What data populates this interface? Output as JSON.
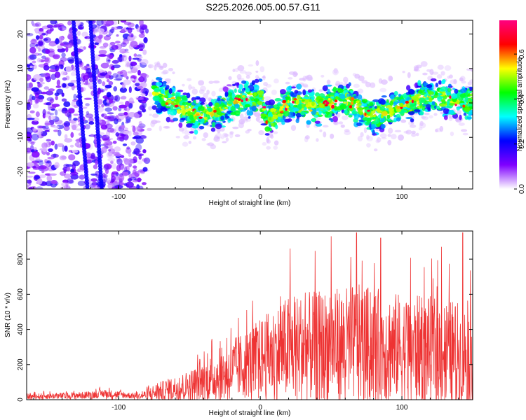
{
  "title": "S225.2026.005.00.57.G11",
  "chart_data": [
    {
      "type": "heatmap",
      "name": "spectrogram",
      "xlabel": "Height of straight line (km)",
      "ylabel": "Frequency (Hz)",
      "xlim": [
        -165,
        150
      ],
      "ylim": [
        -25,
        24
      ],
      "xticks": [
        -100,
        0,
        100
      ],
      "yticks": [
        -20,
        -10,
        0,
        10,
        20
      ],
      "colorbar": {
        "label": "Normalized spectral amplitude",
        "range": [
          0,
          0.75
        ],
        "ticks": [
          "0.0",
          "0.2",
          "0.4",
          "0.6"
        ],
        "tick_values": [
          0,
          0.2,
          0.4,
          0.6
        ],
        "colors": [
          "#ffffff",
          "#7f00ff",
          "#0000ff",
          "#00ffff",
          "#00ff00",
          "#ffff00",
          "#ff0000",
          "#ff0080"
        ]
      },
      "ridge": [
        {
          "x": -70,
          "f": 2
        },
        {
          "x": -50,
          "f": -3
        },
        {
          "x": -35,
          "f": -4
        },
        {
          "x": -20,
          "f": 0
        },
        {
          "x": 0,
          "f": 2
        },
        {
          "x": 5,
          "f": -5
        },
        {
          "x": 20,
          "f": 0
        },
        {
          "x": 40,
          "f": -1
        },
        {
          "x": 60,
          "f": 1
        },
        {
          "x": 80,
          "f": -4
        },
        {
          "x": 100,
          "f": -1
        },
        {
          "x": 120,
          "f": 2
        },
        {
          "x": 145,
          "f": 0
        }
      ]
    },
    {
      "type": "line",
      "name": "snr",
      "xlabel": "Height of straight line (km)",
      "ylabel": "SNR (10 * v/v)",
      "xlim": [
        -165,
        150
      ],
      "ylim": [
        0,
        960
      ],
      "xticks": [
        -100,
        0,
        100
      ],
      "yticks": [
        0,
        200,
        400,
        600,
        800
      ],
      "color": "#ee3333",
      "envelope": [
        {
          "x": -165,
          "base": 18,
          "amp": 20
        },
        {
          "x": -125,
          "base": 25,
          "amp": 25
        },
        {
          "x": -110,
          "base": 35,
          "amp": 30
        },
        {
          "x": -85,
          "base": 20,
          "amp": 20
        },
        {
          "x": -75,
          "base": 40,
          "amp": 60
        },
        {
          "x": -50,
          "base": 80,
          "amp": 110
        },
        {
          "x": -25,
          "base": 150,
          "amp": 200
        },
        {
          "x": 0,
          "base": 240,
          "amp": 280
        },
        {
          "x": 20,
          "base": 290,
          "amp": 380
        },
        {
          "x": 40,
          "base": 300,
          "amp": 400
        },
        {
          "x": 70,
          "base": 320,
          "amp": 420
        },
        {
          "x": 100,
          "base": 300,
          "amp": 380
        },
        {
          "x": 130,
          "base": 280,
          "amp": 380
        },
        {
          "x": 150,
          "base": 250,
          "amp": 350
        }
      ],
      "peaks": [
        {
          "x": 21,
          "y": 860
        },
        {
          "x": 50,
          "y": 930
        },
        {
          "x": 68,
          "y": 950
        },
        {
          "x": 85,
          "y": 920
        },
        {
          "x": 128,
          "y": 870
        },
        {
          "x": 143,
          "y": 950
        }
      ]
    }
  ]
}
